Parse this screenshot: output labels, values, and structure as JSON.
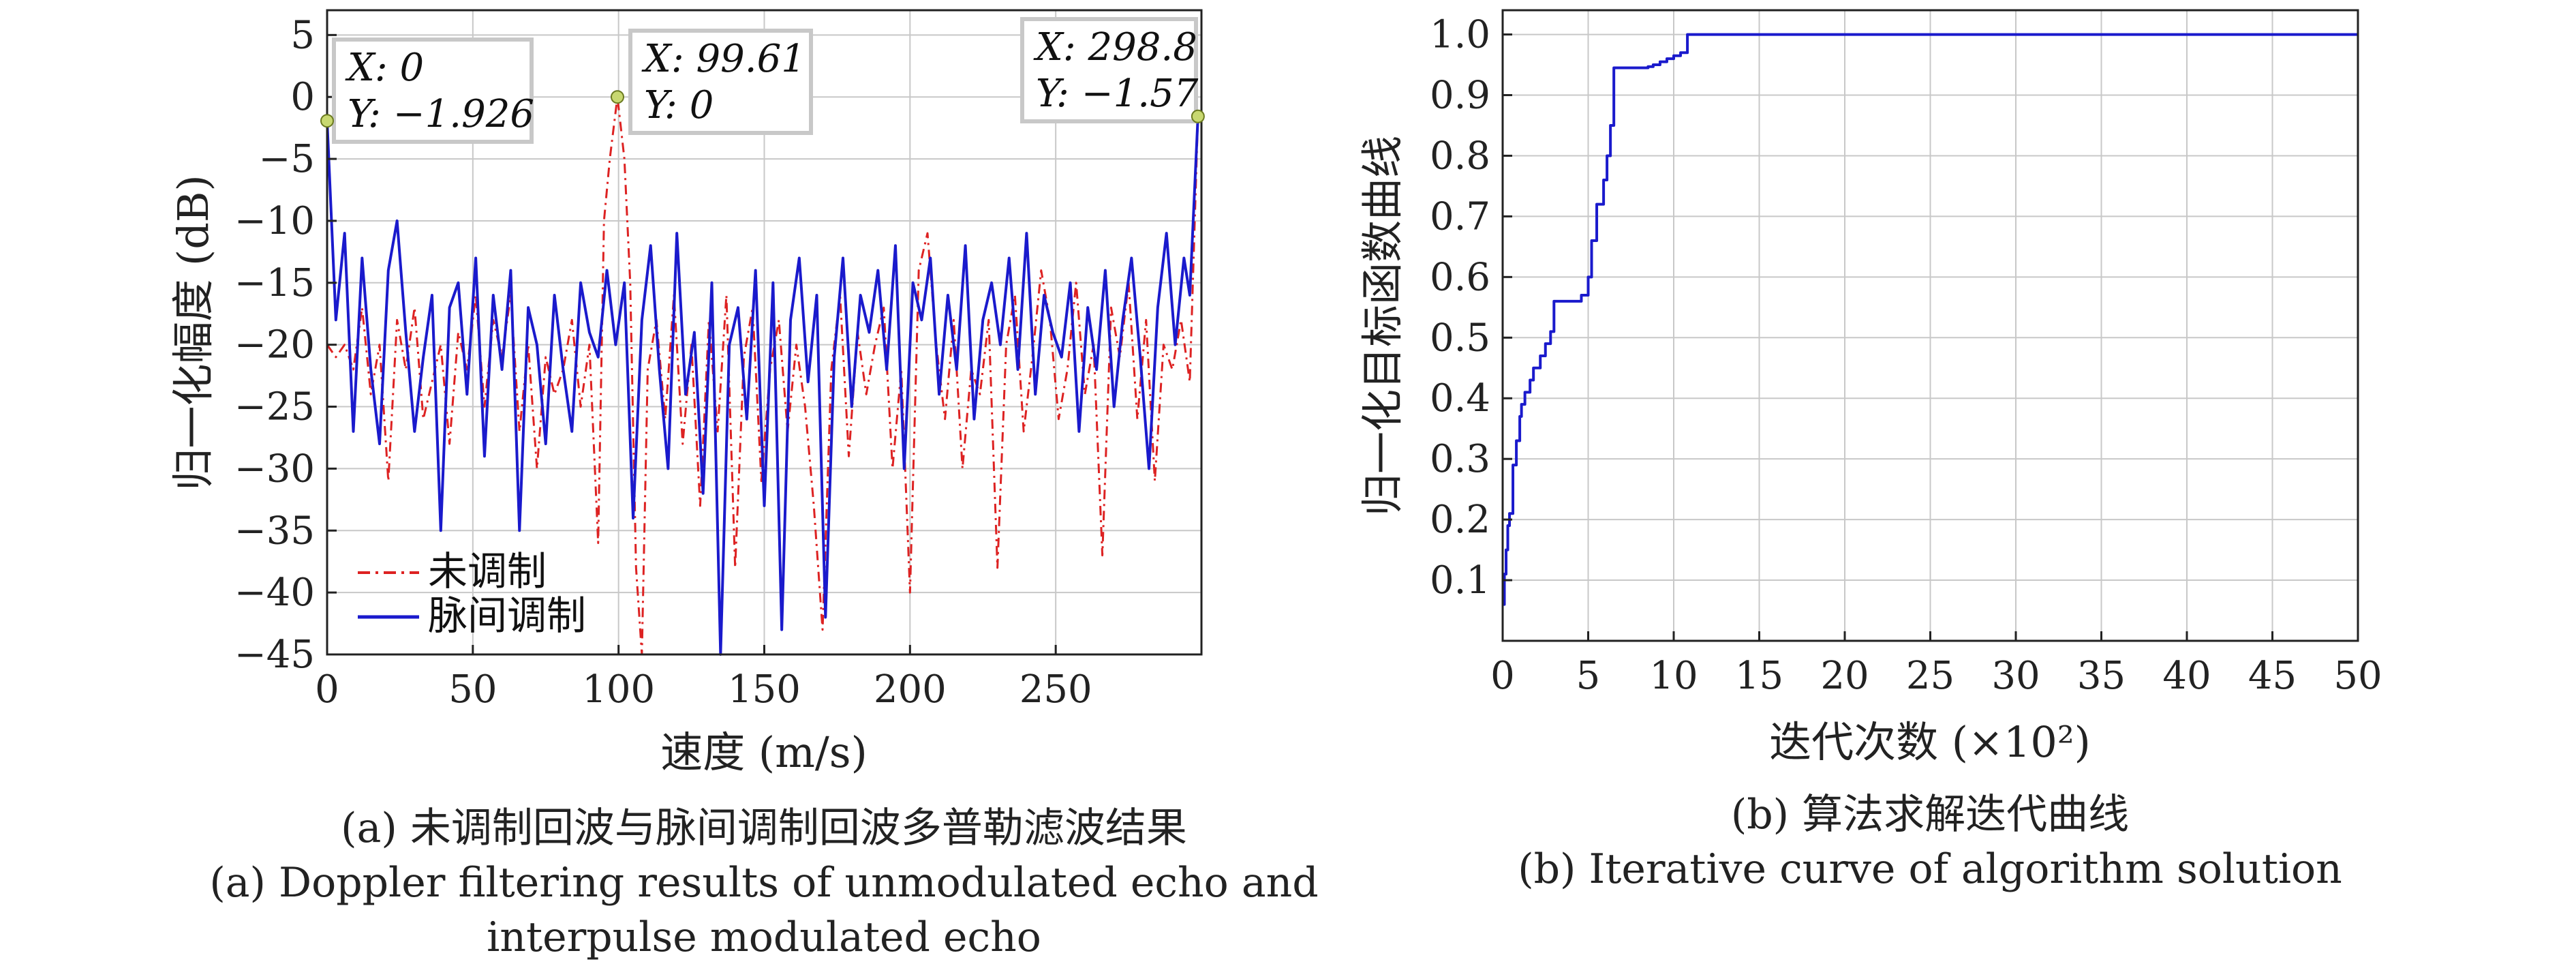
{
  "colors": {
    "unmodulated": "#dd2222",
    "modulated": "#1a1acc",
    "grid": "#c8c8c8",
    "datatip_border": "#c8c8c8",
    "marker": "#c8d870"
  },
  "chart_data": [
    {
      "id": "a",
      "type": "line",
      "xlabel": "速度 (m/s)",
      "ylabel": "归一化幅度 (dB)",
      "xlim": [
        0,
        300
      ],
      "ylim": [
        -45,
        7
      ],
      "xticks": [
        0,
        50,
        100,
        150,
        200,
        250
      ],
      "yticks": [
        5,
        0,
        -5,
        -10,
        -15,
        -20,
        -25,
        -30,
        -35,
        -40,
        -45
      ],
      "grid": true,
      "legend_position": "bottom-left",
      "series": [
        {
          "name": "未调制",
          "style": "dashdot",
          "x": [
            0,
            3,
            6,
            9,
            12,
            15,
            18,
            21,
            24,
            27,
            30,
            33,
            36,
            39,
            42,
            45,
            48,
            51,
            54,
            57,
            60,
            63,
            66,
            69,
            72,
            75,
            78,
            81,
            84,
            87,
            90,
            93,
            95,
            97,
            99.61,
            102,
            104,
            106,
            108,
            110,
            113,
            116,
            119,
            122,
            125,
            128,
            131,
            134,
            137,
            140,
            143,
            146,
            149,
            152,
            155,
            158,
            161,
            164,
            167,
            170,
            173,
            176,
            179,
            182,
            185,
            188,
            191,
            194,
            197,
            200,
            203,
            206,
            209,
            212,
            215,
            218,
            221,
            224,
            227,
            230,
            233,
            236,
            239,
            242,
            245,
            248,
            251,
            254,
            257,
            260,
            263,
            266,
            269,
            272,
            275,
            278,
            281,
            284,
            287,
            290,
            293,
            296,
            298.8
          ],
          "values": [
            -20,
            -21,
            -20,
            -22,
            -17,
            -24,
            -20,
            -31,
            -18,
            -22,
            -17,
            -26,
            -23,
            -20,
            -28,
            -19,
            -22,
            -16,
            -25,
            -18,
            -21,
            -16,
            -27,
            -20,
            -30,
            -21,
            -24,
            -22,
            -18,
            -25,
            -20,
            -36,
            -10,
            -5,
            0,
            -5,
            -15,
            -38,
            -45,
            -22,
            -18,
            -26,
            -16,
            -28,
            -20,
            -33,
            -18,
            -27,
            -16,
            -38,
            -21,
            -17,
            -31,
            -22,
            -18,
            -27,
            -20,
            -25,
            -33,
            -43,
            -22,
            -16,
            -29,
            -19,
            -24,
            -20,
            -17,
            -30,
            -22,
            -40,
            -14,
            -11,
            -20,
            -26,
            -18,
            -30,
            -22,
            -24,
            -18,
            -38,
            -20,
            -16,
            -27,
            -21,
            -14,
            -18,
            -26,
            -22,
            -15,
            -24,
            -20,
            -37,
            -17,
            -21,
            -15,
            -26,
            -18,
            -31,
            -20,
            -22,
            -18,
            -23,
            -1.57
          ]
        },
        {
          "name": "脉间调制",
          "style": "solid",
          "x": [
            0,
            3,
            6,
            9,
            12,
            15,
            18,
            21,
            24,
            27,
            30,
            33,
            36,
            39,
            42,
            45,
            48,
            51,
            54,
            57,
            60,
            63,
            66,
            69,
            72,
            75,
            78,
            81,
            84,
            87,
            90,
            93,
            96,
            99,
            102,
            105,
            108,
            111,
            114,
            117,
            120,
            123,
            126,
            129,
            132,
            135,
            138,
            141,
            144,
            147,
            150,
            153,
            156,
            159,
            162,
            165,
            168,
            171,
            174,
            177,
            180,
            183,
            186,
            189,
            192,
            195,
            198,
            201,
            204,
            207,
            210,
            213,
            216,
            219,
            222,
            225,
            228,
            231,
            234,
            237,
            240,
            243,
            246,
            249,
            252,
            255,
            258,
            261,
            264,
            267,
            270,
            273,
            276,
            279,
            282,
            285,
            288,
            291,
            294,
            296,
            298.8
          ],
          "values": [
            -1.926,
            -18,
            -11,
            -27,
            -13,
            -22,
            -28,
            -14,
            -10,
            -19,
            -27,
            -21,
            -16,
            -35,
            -17,
            -15,
            -24,
            -13,
            -29,
            -16,
            -22,
            -14,
            -35,
            -17,
            -20,
            -28,
            -16,
            -22,
            -27,
            -15,
            -19,
            -21,
            -14,
            -20,
            -15,
            -34,
            -18,
            -12,
            -22,
            -30,
            -11,
            -24,
            -19,
            -32,
            -15,
            -45,
            -20,
            -17,
            -26,
            -14,
            -33,
            -15,
            -43,
            -18,
            -13,
            -23,
            -16,
            -42,
            -21,
            -13,
            -25,
            -16,
            -19,
            -14,
            -22,
            -12,
            -30,
            -15,
            -18,
            -13,
            -24,
            -16,
            -22,
            -12,
            -26,
            -18,
            -15,
            -20,
            -13,
            -22,
            -11,
            -24,
            -16,
            -19,
            -21,
            -15,
            -27,
            -17,
            -22,
            -14,
            -25,
            -18,
            -13,
            -21,
            -30,
            -17,
            -11,
            -20,
            -13,
            -16,
            -1.57
          ]
        }
      ],
      "datatips": [
        {
          "x": 0,
          "y": -1.926,
          "x_text": "X: 0",
          "y_text": "Y: −1.926"
        },
        {
          "x": 99.61,
          "y": 0,
          "x_text": "X: 99.61",
          "y_text": "Y: 0"
        },
        {
          "x": 298.8,
          "y": -1.57,
          "x_text": "X: 298.8",
          "y_text": "Y: −1.57"
        }
      ]
    },
    {
      "id": "b",
      "type": "line",
      "xlabel": "迭代次数 (×10²)",
      "ylabel": "归一化目标函数曲线",
      "xlim": [
        0,
        50
      ],
      "ylim": [
        0,
        1.04
      ],
      "xticks": [
        0,
        5,
        10,
        15,
        20,
        25,
        30,
        35,
        40,
        45,
        50
      ],
      "yticks": [
        0.1,
        0.2,
        0.3,
        0.4,
        0.5,
        0.6,
        0.7,
        0.8,
        0.9,
        1.0
      ],
      "grid": true,
      "series": [
        {
          "style": "step",
          "x": [
            0,
            0.1,
            0.2,
            0.3,
            0.4,
            0.6,
            0.8,
            1.0,
            1.1,
            1.3,
            1.6,
            1.8,
            2.2,
            2.5,
            2.8,
            3.0,
            4.2,
            4.6,
            5.0,
            5.2,
            5.5,
            5.9,
            6.1,
            6.3,
            6.5,
            8.5,
            8.8,
            9.2,
            9.6,
            10.0,
            10.4,
            10.8,
            50
          ],
          "values": [
            0.06,
            0.11,
            0.15,
            0.19,
            0.21,
            0.29,
            0.33,
            0.37,
            0.39,
            0.41,
            0.43,
            0.45,
            0.47,
            0.49,
            0.51,
            0.56,
            0.56,
            0.57,
            0.6,
            0.66,
            0.72,
            0.76,
            0.8,
            0.85,
            0.945,
            0.947,
            0.95,
            0.955,
            0.96,
            0.965,
            0.97,
            1.0,
            1.0
          ]
        }
      ]
    }
  ],
  "captions": {
    "a": [
      "(a) 未调制回波与脉间调制回波多普勒滤波结果",
      "(a) Doppler filtering results of unmodulated echo and",
      "interpulse modulated echo"
    ],
    "b": [
      "(b) 算法求解迭代曲线",
      "(b) Iterative curve of algorithm solution"
    ]
  }
}
